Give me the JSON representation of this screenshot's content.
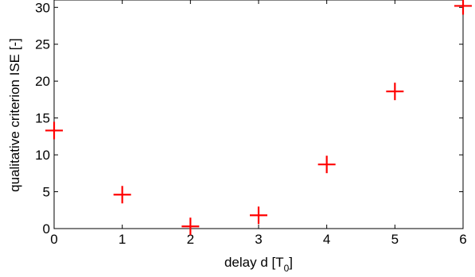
{
  "chart_data": {
    "type": "scatter",
    "title": "",
    "xlabel": "delay d [T",
    "xlabel_subscript": "0",
    "xlabel_suffix": "]",
    "ylabel": "qualitative criterion ISE [-]",
    "xlim": [
      0,
      6
    ],
    "ylim": [
      0,
      31
    ],
    "xticks": [
      0,
      1,
      2,
      3,
      4,
      5,
      6
    ],
    "yticks": [
      0,
      5,
      10,
      15,
      20,
      25,
      30
    ],
    "grid": false,
    "marker": "plus",
    "marker_color": "#ff0000",
    "series": [
      {
        "x": [
          0,
          1,
          2,
          3,
          4,
          5,
          6
        ],
        "y": [
          13.3,
          4.6,
          0.3,
          1.8,
          8.7,
          18.6,
          30.2
        ]
      }
    ]
  }
}
